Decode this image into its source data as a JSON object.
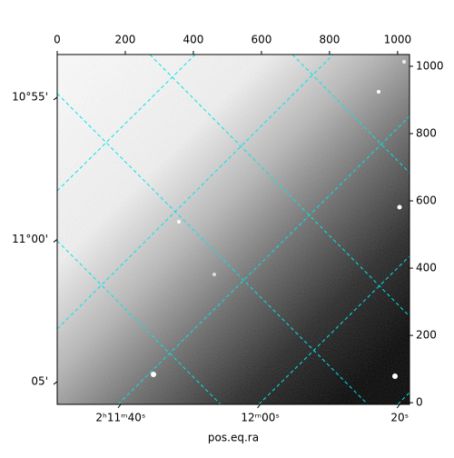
{
  "chart_data": {
    "type": "image",
    "xlabel": "pos.eq.ra",
    "xlim": [
      0,
      1035
    ],
    "xticks": [
      0,
      200,
      400,
      600,
      800,
      1000
    ],
    "ylim": [
      -5,
      1035
    ],
    "yticks": [
      0,
      200,
      400,
      600,
      800,
      1000
    ],
    "ra_lim": [
      30.9,
      81.4
    ],
    "ra_ticks": [
      {
        "value": 40,
        "label": "2ʰ11ᵐ40ˢ"
      },
      {
        "value": 60,
        "label": "12ᵐ00ˢ"
      },
      {
        "value": 80,
        "label": "20ˢ"
      }
    ],
    "dec_lim": [
      53.5,
      65.8
    ],
    "dec_ticks": [
      {
        "value": 55,
        "label": "10°55'"
      },
      {
        "value": 60,
        "label": "11°00'"
      },
      {
        "value": 65,
        "label": "05'"
      }
    ]
  }
}
